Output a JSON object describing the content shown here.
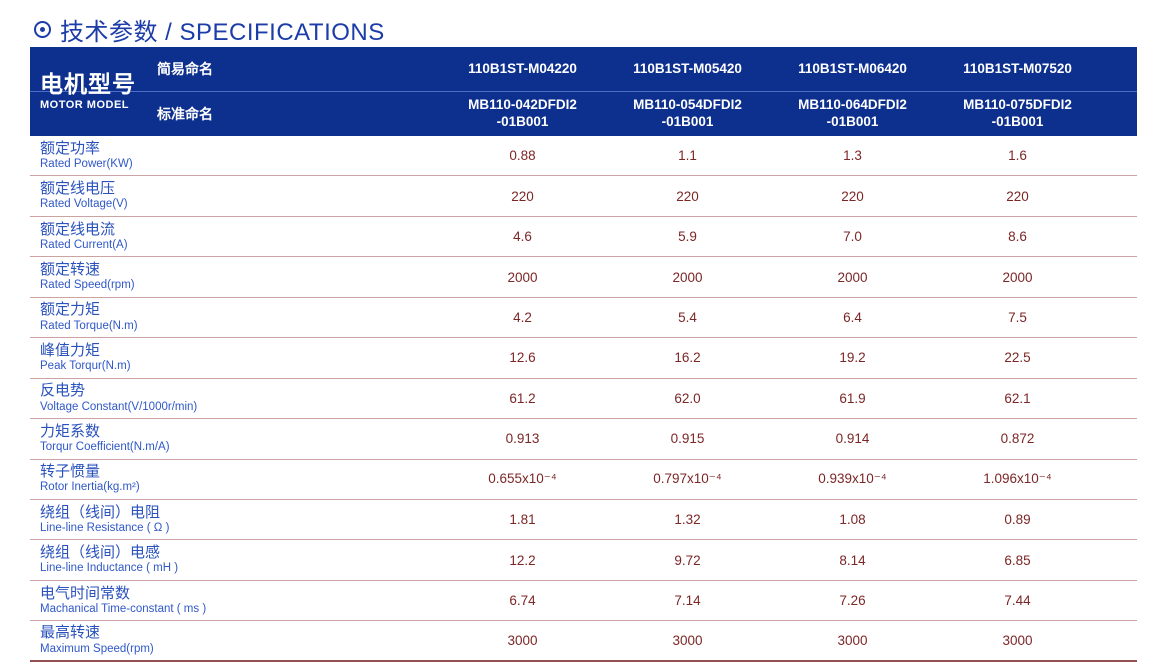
{
  "title": {
    "icon": "circle-dot-icon",
    "text": "技术参数 / SPECIFICATIONS"
  },
  "colors": {
    "header_bg": "#0d2f8e",
    "header_divider": "#4e6dc4",
    "title_blue": "#1c3ca8",
    "label_blue": "#2a52be",
    "value_maroon": "#7c2626",
    "row_line": "#cba3a3",
    "bottom_line": "#925050"
  },
  "table": {
    "header": {
      "motor_model_cn": "电机型号",
      "motor_model_en": "MOTOR MODEL",
      "simple_name_label": "简易命名",
      "standard_name_label": "标准命名",
      "simple_names": [
        "110B1ST-M04220",
        "110B1ST-M05420",
        "110B1ST-M06420",
        "110B1ST-M07520"
      ],
      "standard_names": [
        "MB110-042DFDI2\n-01B001",
        "MB110-054DFDI2\n-01B001",
        "MB110-064DFDI2\n-01B001",
        "MB110-075DFDI2\n-01B001"
      ]
    },
    "rows": [
      {
        "cn": "额定功率",
        "en": "Rated Power(KW)",
        "values": [
          "0.88",
          "1.1",
          "1.3",
          "1.6"
        ]
      },
      {
        "cn": "额定线电压",
        "en": "Rated Voltage(V)",
        "values": [
          "220",
          "220",
          "220",
          "220"
        ]
      },
      {
        "cn": "额定线电流",
        "en": "Rated Current(A)",
        "values": [
          "4.6",
          "5.9",
          "7.0",
          "8.6"
        ]
      },
      {
        "cn": "额定转速",
        "en": "Rated Speed(rpm)",
        "values": [
          "2000",
          "2000",
          "2000",
          "2000"
        ]
      },
      {
        "cn": "额定力矩",
        "en": "Rated Torque(N.m)",
        "values": [
          "4.2",
          "5.4",
          "6.4",
          "7.5"
        ]
      },
      {
        "cn": "峰值力矩",
        "en": "Peak Torqur(N.m)",
        "values": [
          "12.6",
          "16.2",
          "19.2",
          "22.5"
        ]
      },
      {
        "cn": "反电势",
        "en": "Voltage Constant(V/1000r/min)",
        "values": [
          "61.2",
          "62.0",
          "61.9",
          "62.1"
        ]
      },
      {
        "cn": "力矩系数",
        "en": "Torqur Coefficient(N.m/A)",
        "values": [
          "0.913",
          "0.915",
          "0.914",
          "0.872"
        ]
      },
      {
        "cn": "转子惯量",
        "en": "Rotor Inertia(kg.m²)",
        "values": [
          "0.655x10⁻⁴",
          "0.797x10⁻⁴",
          "0.939x10⁻⁴",
          "1.096x10⁻⁴"
        ]
      },
      {
        "cn": "绕组（线间）电阻",
        "en": "Line-line Resistance ( Ω )",
        "values": [
          "1.81",
          "1.32",
          "1.08",
          "0.89"
        ]
      },
      {
        "cn": "绕组（线间）电感",
        "en": "Line-line Inductance ( mH )",
        "values": [
          "12.2",
          "9.72",
          "8.14",
          "6.85"
        ]
      },
      {
        "cn": "电气时间常数",
        "en": "Machanical Time-constant ( ms )",
        "values": [
          "6.74",
          "7.14",
          "7.26",
          "7.44"
        ]
      },
      {
        "cn": "最高转速",
        "en": "Maximum Speed(rpm)",
        "values": [
          "3000",
          "3000",
          "3000",
          "3000"
        ]
      }
    ]
  }
}
